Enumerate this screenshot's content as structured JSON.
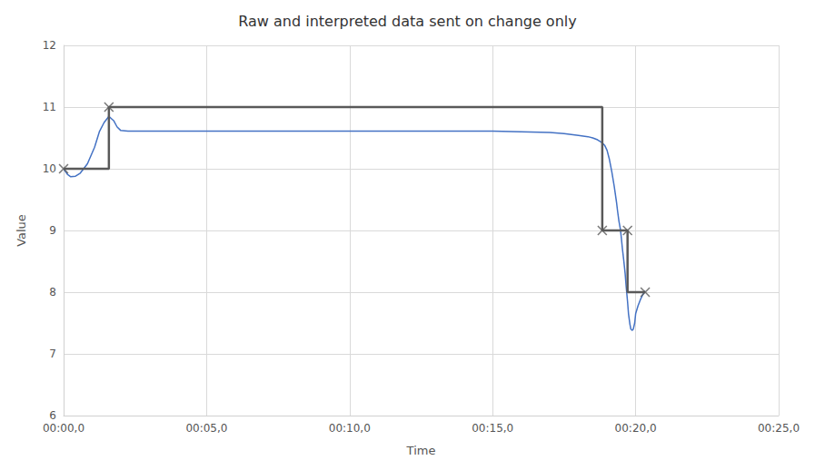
{
  "chart_data": {
    "type": "line",
    "title": "Raw and interpreted data sent on change only",
    "xlabel": "Time",
    "ylabel": "Value",
    "xlim": [
      0,
      1500
    ],
    "ylim": [
      6,
      12
    ],
    "xticks": [
      {
        "value": 0,
        "label": "00:00,0"
      },
      {
        "value": 300,
        "label": "00:05,0"
      },
      {
        "value": 600,
        "label": "00:10,0"
      },
      {
        "value": 900,
        "label": "00:15,0"
      },
      {
        "value": 1200,
        "label": "00:20,0"
      },
      {
        "value": 1500,
        "label": "00:25,0"
      }
    ],
    "yticks": [
      6,
      7,
      8,
      9,
      10,
      11,
      12
    ],
    "grid": true,
    "series": [
      {
        "type": "line",
        "color": "#4472C4",
        "x": [
          0,
          8,
          15,
          25,
          35,
          50,
          65,
          75,
          85,
          95,
          105,
          112,
          120,
          135,
          150,
          180,
          240,
          300,
          420,
          540,
          660,
          780,
          900,
          960,
          1020,
          1050,
          1080,
          1100,
          1110,
          1120,
          1130,
          1135,
          1140,
          1145,
          1150,
          1155,
          1160,
          1162,
          1165,
          1168,
          1170,
          1172,
          1175,
          1178,
          1180,
          1183,
          1185,
          1188,
          1190,
          1193,
          1195,
          1198,
          1200,
          1205,
          1210,
          1215,
          1220
        ],
        "values": [
          10.0,
          9.91,
          9.87,
          9.88,
          9.93,
          10.08,
          10.35,
          10.6,
          10.75,
          10.85,
          10.78,
          10.68,
          10.62,
          10.61,
          10.61,
          10.61,
          10.61,
          10.61,
          10.61,
          10.61,
          10.61,
          10.61,
          10.61,
          10.6,
          10.59,
          10.57,
          10.54,
          10.52,
          10.5,
          10.47,
          10.42,
          10.38,
          10.3,
          10.15,
          9.95,
          9.72,
          9.45,
          9.32,
          9.15,
          9.02,
          8.88,
          8.72,
          8.52,
          8.3,
          8.1,
          7.85,
          7.65,
          7.48,
          7.4,
          7.38,
          7.4,
          7.5,
          7.65,
          7.78,
          7.88,
          7.96,
          8.02
        ]
      },
      {
        "type": "line",
        "color": "#595959",
        "x": [
          0,
          95,
          95,
          1130,
          1130,
          1183,
          1183,
          1220
        ],
        "values": [
          10,
          10,
          11,
          11,
          9,
          9,
          8,
          8
        ]
      },
      {
        "type": "scatter",
        "color": "#595959",
        "marker": "x",
        "x": [
          0,
          95,
          1130,
          1183,
          1220
        ],
        "values": [
          10,
          11,
          9,
          9,
          8
        ]
      }
    ]
  }
}
